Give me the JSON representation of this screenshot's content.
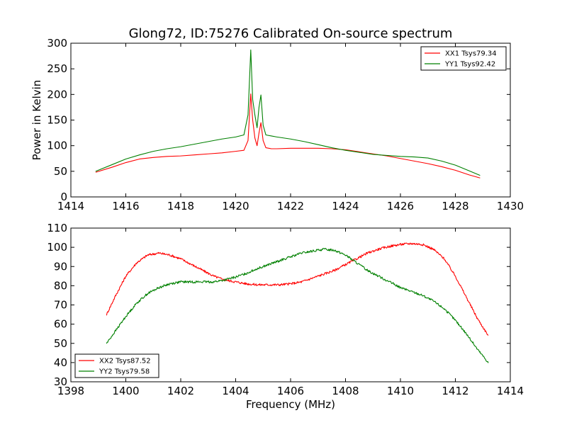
{
  "title": "Glong72, ID:75276 Calibrated On-source spectrum",
  "chart_data": [
    {
      "type": "line",
      "title": "Glong72, ID:75276 Calibrated On-source spectrum",
      "xlabel": "",
      "ylabel": "Power in Kelvin",
      "xlim": [
        1414,
        1430
      ],
      "ylim": [
        0,
        300
      ],
      "xticks": [
        1414,
        1416,
        1418,
        1420,
        1422,
        1424,
        1426,
        1428,
        1430
      ],
      "yticks": [
        0,
        50,
        100,
        150,
        200,
        250,
        300
      ],
      "legend_position": "top-right",
      "grid": false,
      "series": [
        {
          "name": "XX1 Tsys79.34",
          "color": "#ff0000",
          "x": [
            1414.9,
            1415.5,
            1416.0,
            1416.5,
            1417.0,
            1417.5,
            1418.0,
            1418.5,
            1419.0,
            1419.5,
            1420.0,
            1420.3,
            1420.45,
            1420.55,
            1420.62,
            1420.7,
            1420.78,
            1420.85,
            1420.92,
            1421.0,
            1421.1,
            1421.3,
            1421.5,
            1422.0,
            1422.5,
            1423.0,
            1423.5,
            1424.0,
            1424.5,
            1425.0,
            1425.5,
            1426.0,
            1426.5,
            1427.0,
            1427.5,
            1428.0,
            1428.5,
            1428.9
          ],
          "y": [
            48,
            58,
            67,
            74,
            77,
            79,
            80,
            82,
            84,
            86,
            89,
            91,
            110,
            201,
            150,
            115,
            100,
            125,
            145,
            110,
            96,
            94,
            94,
            95,
            95,
            95,
            94,
            92,
            88,
            84,
            80,
            75,
            70,
            65,
            59,
            52,
            43,
            37
          ]
        },
        {
          "name": "YY1 Tsys92.42",
          "color": "#008000",
          "x": [
            1414.9,
            1415.5,
            1416.0,
            1416.5,
            1417.0,
            1417.5,
            1418.0,
            1418.5,
            1419.0,
            1419.5,
            1420.0,
            1420.3,
            1420.45,
            1420.55,
            1420.62,
            1420.7,
            1420.78,
            1420.85,
            1420.92,
            1421.0,
            1421.1,
            1421.3,
            1421.5,
            1422.0,
            1422.5,
            1423.0,
            1423.5,
            1424.0,
            1424.5,
            1425.0,
            1425.5,
            1426.0,
            1426.5,
            1427.0,
            1427.5,
            1428.0,
            1428.5,
            1428.9
          ],
          "y": [
            50,
            63,
            74,
            82,
            89,
            94,
            98,
            103,
            108,
            113,
            117,
            121,
            160,
            287,
            190,
            160,
            135,
            175,
            199,
            140,
            121,
            119,
            117,
            113,
            108,
            102,
            96,
            91,
            87,
            83,
            81,
            79,
            78,
            76,
            70,
            62,
            51,
            42
          ]
        }
      ]
    },
    {
      "type": "line",
      "title": "",
      "xlabel": "Frequency (MHz)",
      "ylabel": "",
      "xlim": [
        1398,
        1414
      ],
      "ylim": [
        30,
        110
      ],
      "xticks": [
        1398,
        1400,
        1402,
        1404,
        1406,
        1408,
        1410,
        1412,
        1414
      ],
      "yticks": [
        30,
        40,
        50,
        60,
        70,
        80,
        90,
        100,
        110
      ],
      "legend_position": "bottom-left",
      "grid": false,
      "series": [
        {
          "name": "XX2 Tsys87.52",
          "color": "#ff0000",
          "x": [
            1399.3,
            1399.6,
            1400.0,
            1400.4,
            1400.8,
            1401.2,
            1401.6,
            1402.0,
            1402.4,
            1402.8,
            1403.2,
            1403.6,
            1404.0,
            1404.4,
            1404.8,
            1405.2,
            1405.6,
            1406.0,
            1406.4,
            1406.8,
            1407.2,
            1407.6,
            1408.0,
            1408.4,
            1408.8,
            1409.2,
            1409.6,
            1410.0,
            1410.4,
            1410.8,
            1411.2,
            1411.6,
            1412.0,
            1412.4,
            1412.8,
            1413.2
          ],
          "y": [
            65,
            74,
            85,
            92,
            96,
            97,
            96,
            94,
            91,
            88,
            85,
            83,
            82,
            81,
            80.5,
            80.5,
            80.5,
            81,
            82,
            84,
            86,
            88,
            91,
            94,
            97,
            99,
            100.5,
            101.5,
            102,
            101.5,
            99,
            94,
            85,
            74,
            63,
            54
          ]
        },
        {
          "name": "YY2 Tsys79.58",
          "color": "#008000",
          "x": [
            1399.3,
            1399.6,
            1400.0,
            1400.4,
            1400.8,
            1401.2,
            1401.6,
            1402.0,
            1402.4,
            1402.8,
            1403.2,
            1403.6,
            1404.0,
            1404.4,
            1404.8,
            1405.2,
            1405.6,
            1406.0,
            1406.4,
            1406.8,
            1407.2,
            1407.6,
            1408.0,
            1408.4,
            1408.8,
            1409.2,
            1409.6,
            1410.0,
            1410.4,
            1410.8,
            1411.2,
            1411.6,
            1412.0,
            1412.4,
            1412.8,
            1413.2
          ],
          "y": [
            50,
            56,
            64,
            71,
            76,
            79,
            81,
            82,
            82,
            82,
            82,
            83,
            84.5,
            86.5,
            89,
            91,
            93,
            95,
            97,
            98,
            99,
            98.5,
            96,
            92,
            88,
            85,
            82,
            79,
            77,
            75,
            72,
            68,
            62,
            55,
            47,
            40
          ]
        }
      ]
    }
  ]
}
